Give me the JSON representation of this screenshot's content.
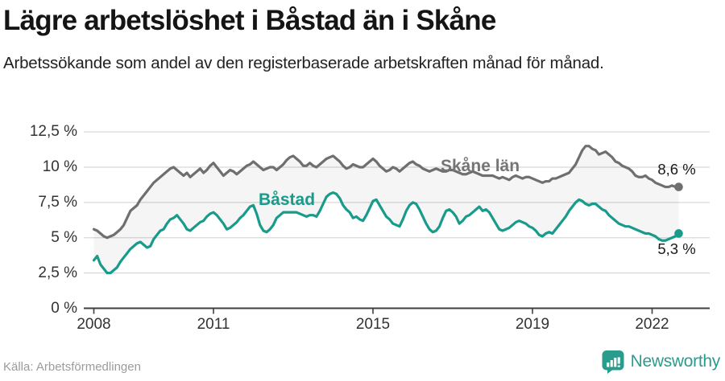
{
  "chart_data": {
    "type": "line",
    "title": "Lägre arbetslöshet i Båstad än i Skåne",
    "subtitle": "Arbetssökande som andel av den registerbaserade arbetskraften månad för månad.",
    "unit": "%",
    "frequency": "monthly",
    "x_start": "2008-01",
    "x_end": "2022-09",
    "ylim": [
      0,
      13.5
    ],
    "grid": true,
    "legend_position": "inline-labels",
    "y_ticks": [
      {
        "label": "12,5 %",
        "value": 12.5
      },
      {
        "label": "10 %",
        "value": 10
      },
      {
        "label": "7,5 %",
        "value": 7.5
      },
      {
        "label": "5 %",
        "value": 5
      },
      {
        "label": "2,5 %",
        "value": 2.5
      },
      {
        "label": "0 %",
        "value": 0
      }
    ],
    "x_ticks": [
      {
        "label": "2008",
        "year": 2008
      },
      {
        "label": "2011",
        "year": 2011
      },
      {
        "label": "2015",
        "year": 2015
      },
      {
        "label": "2019",
        "year": 2019
      },
      {
        "label": "2022",
        "year": 2022
      }
    ],
    "series": [
      {
        "name": "Skåne län",
        "color": "#6f6f6f",
        "end_label": "8,6 %",
        "end_value": 8.6,
        "values": [
          5.6,
          5.5,
          5.3,
          5.1,
          5.0,
          5.1,
          5.2,
          5.4,
          5.6,
          5.9,
          6.4,
          6.9,
          7.1,
          7.3,
          7.7,
          8.0,
          8.3,
          8.6,
          8.9,
          9.1,
          9.3,
          9.5,
          9.7,
          9.9,
          10.0,
          9.8,
          9.6,
          9.4,
          9.6,
          9.3,
          9.5,
          9.7,
          9.9,
          9.6,
          9.8,
          10.1,
          10.3,
          10.0,
          9.7,
          9.4,
          9.6,
          9.8,
          9.7,
          9.5,
          9.7,
          9.9,
          10.1,
          10.2,
          10.4,
          10.2,
          10.0,
          9.8,
          9.9,
          10.0,
          10.0,
          9.8,
          10.0,
          10.2,
          10.5,
          10.7,
          10.8,
          10.6,
          10.4,
          10.1,
          10.1,
          10.3,
          10.1,
          10.0,
          10.2,
          10.4,
          10.6,
          10.7,
          10.8,
          10.6,
          10.4,
          10.1,
          9.9,
          10.0,
          10.2,
          10.1,
          10.0,
          10.0,
          10.2,
          10.4,
          10.6,
          10.4,
          10.1,
          9.9,
          9.7,
          9.8,
          10.0,
          9.9,
          9.7,
          9.9,
          10.1,
          10.3,
          10.4,
          10.2,
          10.1,
          9.9,
          9.8,
          9.7,
          9.8,
          9.9,
          9.8,
          9.7,
          9.7,
          9.8,
          9.8,
          9.7,
          9.6,
          9.5,
          9.5,
          9.6,
          9.7,
          9.6,
          9.5,
          9.4,
          9.4,
          9.4,
          9.4,
          9.3,
          9.2,
          9.3,
          9.2,
          9.1,
          9.3,
          9.4,
          9.3,
          9.2,
          9.3,
          9.3,
          9.2,
          9.1,
          9.0,
          8.9,
          9.0,
          9.0,
          9.2,
          9.2,
          9.3,
          9.4,
          9.5,
          9.6,
          9.9,
          10.2,
          10.7,
          11.2,
          11.5,
          11.5,
          11.3,
          11.2,
          10.9,
          11.0,
          11.1,
          10.9,
          10.7,
          10.4,
          10.3,
          10.1,
          10.0,
          9.9,
          9.7,
          9.4,
          9.3,
          9.3,
          9.4,
          9.2,
          9.1,
          8.9,
          8.8,
          8.7,
          8.6,
          8.6,
          8.7,
          8.6,
          8.6
        ]
      },
      {
        "name": "Båstad",
        "color": "#189b8b",
        "end_label": "5,3 %",
        "end_value": 5.3,
        "values": [
          3.4,
          3.7,
          3.1,
          2.8,
          2.5,
          2.5,
          2.7,
          2.9,
          3.3,
          3.6,
          3.9,
          4.2,
          4.4,
          4.6,
          4.7,
          4.5,
          4.3,
          4.4,
          4.9,
          5.2,
          5.5,
          5.6,
          6.0,
          6.3,
          6.4,
          6.6,
          6.3,
          6.0,
          5.6,
          5.5,
          5.7,
          5.9,
          6.1,
          6.2,
          6.5,
          6.7,
          6.8,
          6.6,
          6.3,
          6.0,
          5.6,
          5.7,
          5.9,
          6.1,
          6.4,
          6.6,
          6.9,
          7.2,
          7.3,
          6.7,
          5.9,
          5.5,
          5.4,
          5.6,
          5.9,
          6.4,
          6.6,
          6.8,
          6.8,
          6.8,
          6.8,
          6.8,
          6.7,
          6.6,
          6.5,
          6.6,
          6.6,
          6.5,
          6.9,
          7.4,
          7.9,
          8.1,
          8.2,
          8.1,
          7.8,
          7.3,
          7.0,
          6.8,
          6.4,
          6.5,
          6.3,
          6.2,
          6.6,
          7.1,
          7.6,
          7.7,
          7.3,
          6.9,
          6.5,
          6.3,
          6.0,
          5.9,
          5.8,
          6.3,
          6.9,
          7.3,
          7.5,
          7.4,
          7.0,
          6.5,
          6.0,
          5.6,
          5.4,
          5.5,
          5.8,
          6.4,
          6.9,
          7.0,
          6.8,
          6.5,
          6.0,
          6.2,
          6.5,
          6.6,
          6.8,
          7.0,
          7.2,
          6.9,
          7.0,
          6.8,
          6.4,
          6.0,
          5.6,
          5.5,
          5.6,
          5.7,
          5.9,
          6.1,
          6.2,
          6.1,
          6.0,
          5.8,
          5.7,
          5.5,
          5.2,
          5.1,
          5.3,
          5.4,
          5.3,
          5.6,
          5.9,
          6.2,
          6.5,
          6.9,
          7.2,
          7.5,
          7.7,
          7.6,
          7.4,
          7.3,
          7.4,
          7.4,
          7.2,
          7.0,
          6.9,
          6.6,
          6.4,
          6.2,
          6.0,
          5.9,
          5.8,
          5.8,
          5.7,
          5.6,
          5.5,
          5.4,
          5.3,
          5.3,
          5.2,
          5.1,
          4.9,
          4.8,
          4.8,
          4.9,
          5.0,
          5.1,
          5.3
        ]
      }
    ]
  },
  "footer": {
    "source": "Källa: Arbetsförmedlingen",
    "brand": "Newsworthy"
  }
}
